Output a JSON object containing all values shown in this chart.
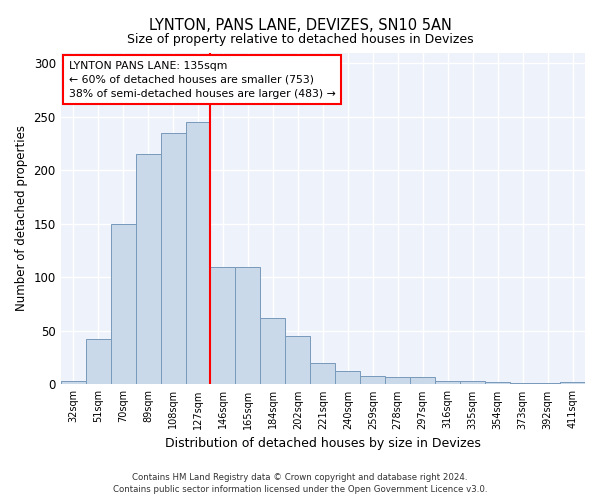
{
  "title": "LYNTON, PANS LANE, DEVIZES, SN10 5AN",
  "subtitle": "Size of property relative to detached houses in Devizes",
  "xlabel": "Distribution of detached houses by size in Devizes",
  "ylabel": "Number of detached properties",
  "categories": [
    "32sqm",
    "51sqm",
    "70sqm",
    "89sqm",
    "108sqm",
    "127sqm",
    "146sqm",
    "165sqm",
    "184sqm",
    "202sqm",
    "221sqm",
    "240sqm",
    "259sqm",
    "278sqm",
    "297sqm",
    "316sqm",
    "335sqm",
    "354sqm",
    "373sqm",
    "392sqm",
    "411sqm"
  ],
  "values": [
    3,
    42,
    150,
    215,
    235,
    245,
    110,
    110,
    62,
    45,
    20,
    13,
    8,
    7,
    7,
    3,
    3,
    2,
    1,
    1,
    2
  ],
  "bar_color": "#c9d9ea",
  "bar_edge_color": "#7799bb",
  "background_color": "#eef2fb",
  "grid_color": "#ffffff",
  "annotation_text": "LYNTON PANS LANE: 135sqm\n← 60% of detached houses are smaller (753)\n38% of semi-detached houses are larger (483) →",
  "red_line_bar_index": 5,
  "ylim": [
    0,
    310
  ],
  "yticks": [
    0,
    50,
    100,
    150,
    200,
    250,
    300
  ],
  "footer_line1": "Contains HM Land Registry data © Crown copyright and database right 2024.",
  "footer_line2": "Contains public sector information licensed under the Open Government Licence v3.0."
}
